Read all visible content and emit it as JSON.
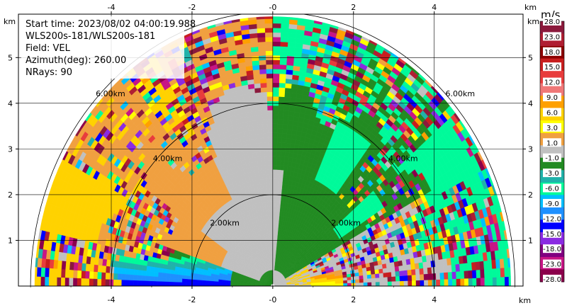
{
  "info": {
    "start_time": "Start time: 2023/08/02 04:00:19.988",
    "instrument": "WLS200s-181/WLS200s-181",
    "field": "Field: VEL",
    "azimuth": "Azimuth(deg): 260.00",
    "nrays": "NRays: 90"
  },
  "chart_data": {
    "type": "heatmap",
    "projection": "polar-rhi-half-disc",
    "field": "VEL",
    "units": "km",
    "xlim": [
      -6.3,
      6.2
    ],
    "ylim": [
      0,
      5.95
    ],
    "x_ticks": [
      "-4",
      "-2",
      "-0",
      "2",
      "4"
    ],
    "y_ticks": [
      "1",
      "2",
      "3",
      "4",
      "5"
    ],
    "x_unit_label": "km",
    "y_unit_label": "km",
    "grid": true,
    "range_rings": [
      {
        "radius": 2,
        "label": "2.00km"
      },
      {
        "radius": 4,
        "label": "4.00km"
      },
      {
        "radius": 6,
        "label": "6.00km"
      }
    ],
    "colorbar": {
      "unit": "m/s",
      "tick_labels": [
        "28.0",
        "23.0",
        "18.0",
        "15.0",
        "12.0",
        "9.0",
        "6.0",
        "3.0",
        "1.0",
        "-1.0",
        "-3.0",
        "-6.0",
        "-9.0",
        "-12.0",
        "-15.0",
        "-18.0",
        "-23.0",
        "-28.0"
      ],
      "colors": [
        "#8b1a3c",
        "#b01e32",
        "#8b0000",
        "#c81e1e",
        "#e83c3c",
        "#f07878",
        "#ffa000",
        "#ffd200",
        "#ffff00",
        "#f0a040",
        "#c0c0c0",
        "#228b22",
        "#20b2aa",
        "#00fa9a",
        "#00bfff",
        "#1e90ff",
        "#0000ff",
        "#8a2be2",
        "#800080",
        "#c71585",
        "#8b004b"
      ]
    },
    "sectors": [
      {
        "from_r": 0.0,
        "to_r": 0.75,
        "theta_from": 0,
        "theta_to": 180,
        "value": "noise-near"
      },
      {
        "from_r": 0.75,
        "to_r": 4.0,
        "theta_from": 92,
        "theta_to": 180,
        "value": -1.0
      },
      {
        "from_r": 0.75,
        "to_r": 4.0,
        "theta_from": 0,
        "theta_to": 88,
        "value": -3.0
      },
      {
        "from_r": 4.0,
        "to_r": 5.9,
        "theta_from": 0,
        "theta_to": 180,
        "value": "mixed"
      }
    ]
  }
}
